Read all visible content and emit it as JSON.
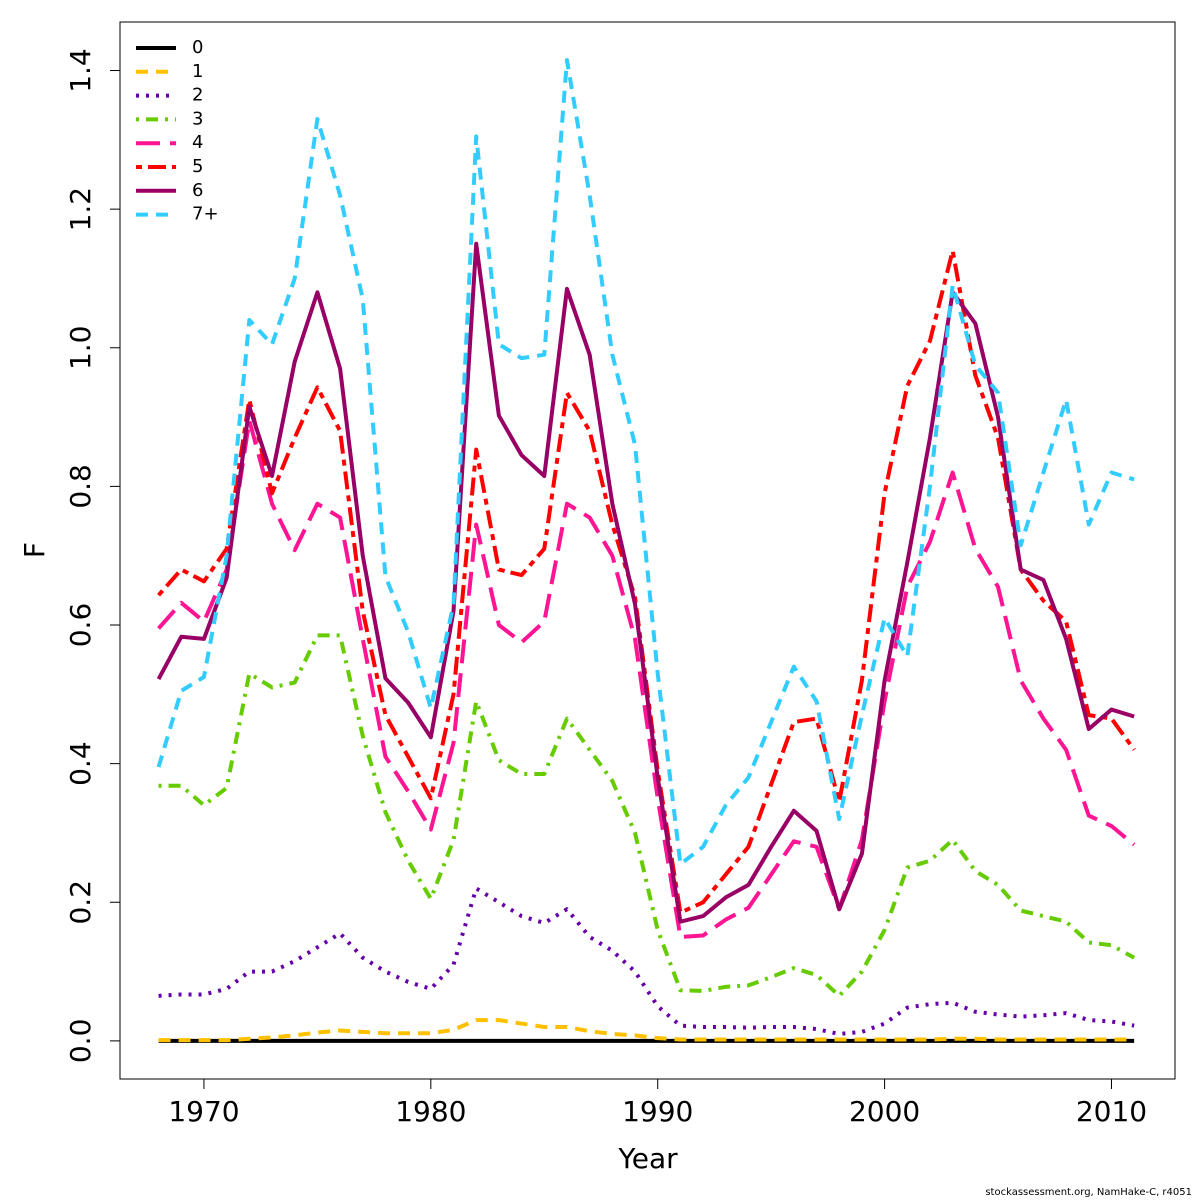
{
  "chart_data": {
    "type": "line",
    "x_label": "Year",
    "y_label": "F",
    "footnote": "stockassessment.org, NamHake-C, r4051",
    "x": [
      1968,
      1969,
      1970,
      1971,
      1972,
      1973,
      1974,
      1975,
      1976,
      1977,
      1978,
      1979,
      1980,
      1981,
      1982,
      1983,
      1984,
      1985,
      1986,
      1987,
      1988,
      1989,
      1990,
      1991,
      1992,
      1993,
      1994,
      1995,
      1996,
      1997,
      1998,
      1999,
      2000,
      2001,
      2002,
      2003,
      2004,
      2005,
      2006,
      2007,
      2008,
      2009,
      2010,
      2011
    ],
    "xlim": [
      1966.3,
      2012.8
    ],
    "xticks": [
      1970,
      1980,
      1990,
      2000,
      2010
    ],
    "ylim": [
      -0.055,
      1.47
    ],
    "yticks": [
      {
        "value": 0,
        "label": "0.0"
      },
      0.2,
      0.4,
      0.6,
      0.8,
      {
        "value": 1,
        "label": "1.0"
      },
      1.2,
      1.4
    ],
    "grid": false,
    "legend": "top-left",
    "series": [
      {
        "name": "0",
        "color": "#000000",
        "line_style": "solid",
        "values": [
          0,
          0,
          0,
          0,
          0,
          0,
          0,
          0,
          0,
          0,
          0,
          0,
          0,
          0,
          0,
          0,
          0,
          0,
          0,
          0,
          0,
          0,
          0,
          0,
          0,
          0,
          0,
          0,
          0,
          0,
          0,
          0,
          0,
          0,
          0,
          0,
          0,
          0,
          0,
          0,
          0,
          0,
          0,
          0
        ]
      },
      {
        "name": "1",
        "color": "#ffc000",
        "line_style": "dashed",
        "values": [
          0.001,
          0.001,
          0.001,
          0.001,
          0.003,
          0.005,
          0.008,
          0.012,
          0.015,
          0.013,
          0.011,
          0.011,
          0.011,
          0.016,
          0.03,
          0.03,
          0.025,
          0.02,
          0.02,
          0.014,
          0.01,
          0.008,
          0.004,
          0.002,
          0.002,
          0.002,
          0.002,
          0.002,
          0.002,
          0.002,
          0.002,
          0.002,
          0.002,
          0.002,
          0.002,
          0.003,
          0.003,
          0.002,
          0.002,
          0.002,
          0.002,
          0.002,
          0.002,
          0.002
        ]
      },
      {
        "name": "2",
        "color": "#6600aa",
        "line_style": "dotted",
        "values": [
          0.065,
          0.067,
          0.067,
          0.075,
          0.1,
          0.1,
          0.115,
          0.135,
          0.155,
          0.12,
          0.1,
          0.085,
          0.075,
          0.11,
          0.22,
          0.2,
          0.18,
          0.17,
          0.19,
          0.15,
          0.13,
          0.1,
          0.05,
          0.022,
          0.02,
          0.02,
          0.019,
          0.02,
          0.02,
          0.017,
          0.01,
          0.013,
          0.025,
          0.048,
          0.053,
          0.055,
          0.042,
          0.038,
          0.035,
          0.037,
          0.04,
          0.03,
          0.028,
          0.022
        ]
      },
      {
        "name": "3",
        "color": "#66cc00",
        "line_style": "dotdash",
        "values": [
          0.368,
          0.368,
          0.34,
          0.365,
          0.53,
          0.51,
          0.517,
          0.585,
          0.585,
          0.44,
          0.33,
          0.26,
          0.205,
          0.29,
          0.49,
          0.405,
          0.385,
          0.385,
          0.465,
          0.42,
          0.375,
          0.3,
          0.16,
          0.073,
          0.072,
          0.078,
          0.08,
          0.092,
          0.105,
          0.095,
          0.065,
          0.1,
          0.16,
          0.25,
          0.26,
          0.29,
          0.245,
          0.225,
          0.188,
          0.18,
          0.172,
          0.142,
          0.138,
          0.12
        ]
      },
      {
        "name": "4",
        "color": "#ff1493",
        "line_style": "longdash",
        "values": [
          0.595,
          0.632,
          0.605,
          0.68,
          0.895,
          0.775,
          0.708,
          0.775,
          0.755,
          0.58,
          0.41,
          0.36,
          0.305,
          0.43,
          0.745,
          0.6,
          0.575,
          0.605,
          0.775,
          0.755,
          0.7,
          0.58,
          0.35,
          0.15,
          0.152,
          0.175,
          0.192,
          0.24,
          0.288,
          0.28,
          0.19,
          0.29,
          0.49,
          0.655,
          0.72,
          0.82,
          0.71,
          0.655,
          0.52,
          0.465,
          0.42,
          0.325,
          0.31,
          0.283
        ]
      },
      {
        "name": "5",
        "color": "#ff0000",
        "line_style": "twodash",
        "values": [
          0.643,
          0.68,
          0.663,
          0.71,
          0.925,
          0.79,
          0.87,
          0.943,
          0.88,
          0.62,
          0.47,
          0.41,
          0.35,
          0.5,
          0.853,
          0.68,
          0.672,
          0.71,
          0.935,
          0.88,
          0.745,
          0.64,
          0.39,
          0.185,
          0.2,
          0.24,
          0.28,
          0.37,
          0.46,
          0.465,
          0.345,
          0.52,
          0.79,
          0.945,
          1.01,
          1.14,
          0.96,
          0.87,
          0.68,
          0.635,
          0.605,
          0.47,
          0.465,
          0.42
        ]
      },
      {
        "name": "6",
        "color": "#990066",
        "line_style": "solid",
        "values": [
          0.522,
          0.583,
          0.58,
          0.668,
          0.915,
          0.815,
          0.98,
          1.08,
          0.97,
          0.7,
          0.523,
          0.488,
          0.438,
          0.62,
          1.15,
          0.902,
          0.845,
          0.815,
          1.085,
          0.99,
          0.775,
          0.63,
          0.38,
          0.172,
          0.18,
          0.207,
          0.225,
          0.28,
          0.332,
          0.303,
          0.19,
          0.27,
          0.52,
          0.69,
          0.87,
          1.08,
          1.035,
          0.9,
          0.68,
          0.665,
          0.58,
          0.45,
          0.478,
          0.468
        ]
      },
      {
        "name": "7+",
        "color": "#33ccff",
        "line_style": "dashed",
        "values": [
          0.395,
          0.505,
          0.525,
          0.7,
          1.04,
          1.005,
          1.1,
          1.33,
          1.22,
          1.07,
          0.67,
          0.59,
          0.48,
          0.63,
          1.305,
          1.005,
          0.985,
          0.99,
          1.415,
          1.22,
          0.99,
          0.86,
          0.53,
          0.255,
          0.28,
          0.34,
          0.38,
          0.46,
          0.54,
          0.49,
          0.32,
          0.47,
          0.61,
          0.555,
          0.8,
          1.09,
          0.975,
          0.935,
          0.715,
          0.82,
          0.925,
          0.745,
          0.82,
          0.81
        ]
      }
    ]
  }
}
